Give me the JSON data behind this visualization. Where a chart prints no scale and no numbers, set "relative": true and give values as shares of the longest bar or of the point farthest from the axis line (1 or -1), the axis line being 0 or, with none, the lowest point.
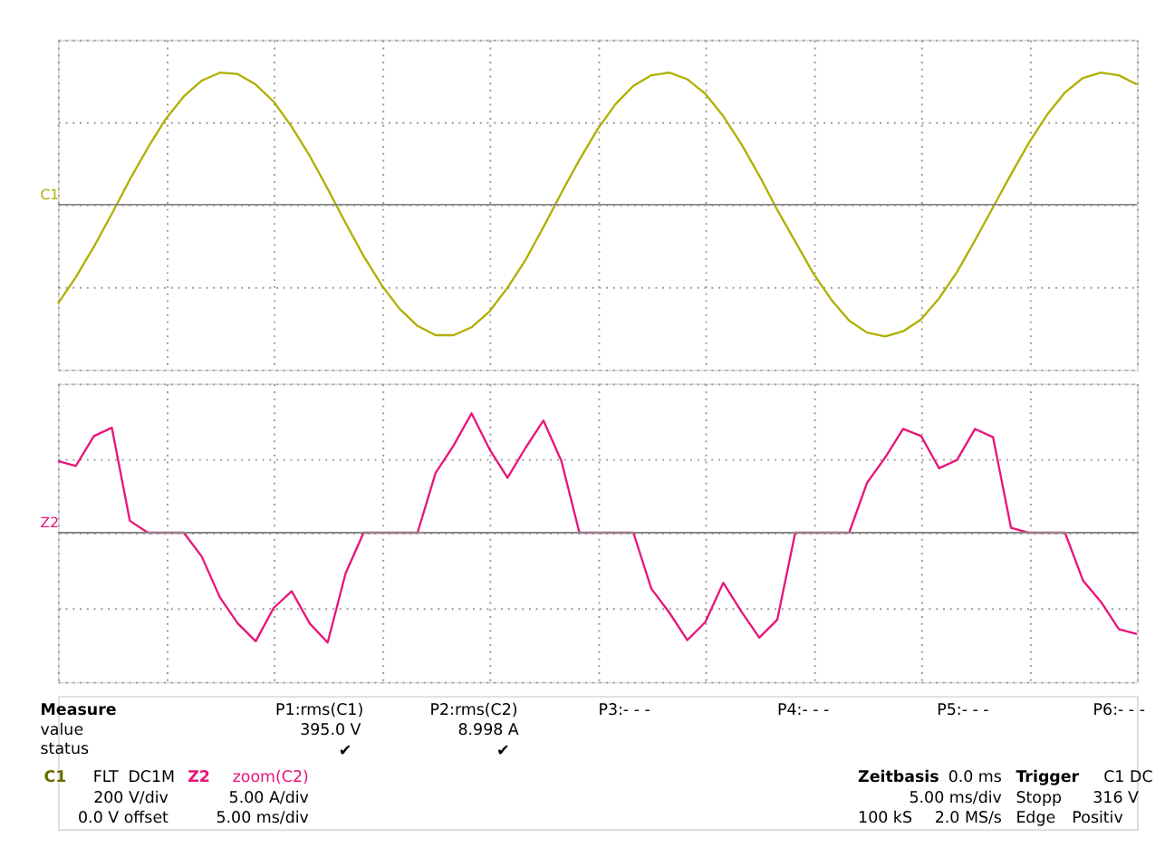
{
  "chart_data": [
    {
      "type": "line",
      "relative": true,
      "grid": true,
      "tick_labels": false,
      "annotations": [
        "C1"
      ],
      "categories": [
        null,
        null,
        null,
        null,
        null,
        null,
        null,
        null,
        null,
        null,
        null,
        null,
        null,
        null,
        null,
        null,
        null,
        null,
        null,
        null,
        null,
        null,
        null,
        null,
        null,
        null,
        null,
        null,
        null,
        null,
        null,
        null,
        null,
        null,
        null,
        null,
        null,
        null,
        null,
        null,
        null,
        null,
        null,
        null,
        null,
        null,
        null,
        null,
        null,
        null,
        null,
        null,
        null,
        null,
        null,
        null,
        null,
        null,
        null,
        null,
        null
      ],
      "series": [
        {
          "color": "#b0b000",
          "values": [
            -0.75,
            -0.55,
            -0.32,
            -0.07,
            0.19,
            0.43,
            0.65,
            0.82,
            0.94,
            1.0,
            0.99,
            0.91,
            0.78,
            0.59,
            0.37,
            0.12,
            -0.14,
            -0.39,
            -0.61,
            -0.79,
            -0.92,
            -0.99,
            -0.99,
            -0.93,
            -0.81,
            -0.63,
            -0.42,
            -0.17,
            0.09,
            0.34,
            0.57,
            0.76,
            0.9,
            0.98,
            1.0,
            0.95,
            0.84,
            0.67,
            0.46,
            0.22,
            -0.04,
            -0.28,
            -0.52,
            -0.72,
            -0.88,
            -0.97,
            -1.0,
            -0.96,
            -0.87,
            -0.71,
            -0.51,
            -0.27,
            -0.02,
            0.23,
            0.47,
            0.68,
            0.85,
            0.96,
            1.0,
            0.98,
            0.91
          ]
        }
      ]
    },
    {
      "type": "line",
      "relative": true,
      "grid": true,
      "tick_labels": false,
      "annotations": [
        "Z2"
      ],
      "categories": [
        null,
        null,
        null,
        null,
        null,
        null,
        null,
        null,
        null,
        null,
        null,
        null,
        null,
        null,
        null,
        null,
        null,
        null,
        null,
        null,
        null,
        null,
        null,
        null,
        null,
        null,
        null,
        null,
        null,
        null,
        null,
        null,
        null,
        null,
        null,
        null,
        null,
        null,
        null,
        null,
        null,
        null,
        null,
        null,
        null,
        null,
        null,
        null,
        null,
        null,
        null,
        null,
        null,
        null,
        null,
        null,
        null,
        null,
        null,
        null,
        null
      ],
      "series": [
        {
          "color": "#e8157a",
          "values": [
            0.6,
            0.56,
            0.81,
            0.88,
            0.1,
            0,
            0,
            0,
            -0.2,
            -0.54,
            -0.76,
            -0.91,
            -0.63,
            -0.49,
            -0.76,
            -0.92,
            -0.34,
            0,
            0,
            0,
            0,
            0.5,
            0.73,
            1.0,
            0.7,
            0.46,
            0.71,
            0.94,
            0.6,
            0,
            0,
            0,
            0,
            -0.47,
            -0.67,
            -0.9,
            -0.75,
            -0.42,
            -0.66,
            -0.88,
            -0.73,
            0,
            0,
            0,
            0,
            0.42,
            0.63,
            0.87,
            0.81,
            0.54,
            0.61,
            0.87,
            0.8,
            0.04,
            0,
            0,
            0,
            -0.4,
            -0.58,
            -0.81,
            -0.85
          ]
        }
      ]
    },
    {
      "type": "other",
      "annotations": [
        "Measure",
        "value",
        "status",
        "P1:rms(C1)",
        "395.0 V",
        "✔",
        "P2:rms(C2)",
        "8.998 A",
        "✔",
        "P3:- - -",
        "P4:- - -",
        "P5:- - -",
        "P6:- - -",
        "C1",
        "FLT",
        "DC1M",
        "200 V/div",
        "0.0 V offset",
        "Z2",
        "zoom(C2)",
        "5.00 A/div",
        "5.00 ms/div",
        "Zeitbasis",
        "0.0 ms",
        "5.00 ms/div",
        "100 kS",
        "2.0 MS/s",
        "Trigger",
        "C1 DC",
        "Stopp",
        "316 V",
        "Edge",
        "Positiv"
      ]
    }
  ]
}
